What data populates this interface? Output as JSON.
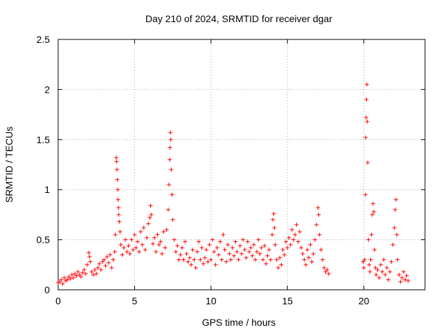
{
  "chart_data": {
    "type": "scatter",
    "title": "Day 210 of 2024, SRMTID for receiver dgar",
    "xlabel": "GPS time / hours",
    "ylabel": "SRMTID / TECUs",
    "xlim": [
      0,
      24
    ],
    "ylim": [
      0,
      2.5
    ],
    "x_ticks": [
      0,
      5,
      10,
      15,
      20
    ],
    "x_tick_labels": [
      "0",
      "5",
      "10",
      "15",
      "20"
    ],
    "y_ticks": [
      0,
      0.5,
      1,
      1.5,
      2,
      2.5
    ],
    "y_tick_labels": [
      "0",
      "0.5",
      "1",
      "1.5",
      "2",
      "2.5"
    ],
    "grid": true,
    "marker": "+",
    "series": [
      {
        "name": "SRMTID",
        "color": "#ff0000",
        "points": [
          [
            0.0,
            0.07
          ],
          [
            0.1,
            0.08
          ],
          [
            0.2,
            0.1
          ],
          [
            0.3,
            0.06
          ],
          [
            0.4,
            0.12
          ],
          [
            0.5,
            0.09
          ],
          [
            0.6,
            0.1
          ],
          [
            0.7,
            0.13
          ],
          [
            0.8,
            0.11
          ],
          [
            0.9,
            0.15
          ],
          [
            1.0,
            0.12
          ],
          [
            1.1,
            0.16
          ],
          [
            1.2,
            0.14
          ],
          [
            1.3,
            0.18
          ],
          [
            1.4,
            0.15
          ],
          [
            1.5,
            0.13
          ],
          [
            1.6,
            0.17
          ],
          [
            1.7,
            0.2
          ],
          [
            1.8,
            0.16
          ],
          [
            1.9,
            0.25
          ],
          [
            2.0,
            0.37
          ],
          [
            2.05,
            0.33
          ],
          [
            2.1,
            0.28
          ],
          [
            2.2,
            0.18
          ],
          [
            2.3,
            0.15
          ],
          [
            2.4,
            0.2
          ],
          [
            2.5,
            0.16
          ],
          [
            2.6,
            0.22
          ],
          [
            2.7,
            0.26
          ],
          [
            2.8,
            0.2
          ],
          [
            2.9,
            0.28
          ],
          [
            3.0,
            0.3
          ],
          [
            3.1,
            0.24
          ],
          [
            3.2,
            0.33
          ],
          [
            3.3,
            0.27
          ],
          [
            3.4,
            0.35
          ],
          [
            3.5,
            0.22
          ],
          [
            3.6,
            0.3
          ],
          [
            3.7,
            0.38
          ],
          [
            3.75,
            0.55
          ],
          [
            3.8,
            1.32
          ],
          [
            3.82,
            1.28
          ],
          [
            3.85,
            1.2
          ],
          [
            3.87,
            1.1
          ],
          [
            3.9,
            1.0
          ],
          [
            3.92,
            0.9
          ],
          [
            3.95,
            0.82
          ],
          [
            3.97,
            0.75
          ],
          [
            4.0,
            0.68
          ],
          [
            4.05,
            0.58
          ],
          [
            4.1,
            0.45
          ],
          [
            4.2,
            0.35
          ],
          [
            4.3,
            0.42
          ],
          [
            4.4,
            0.5
          ],
          [
            4.5,
            0.38
          ],
          [
            4.6,
            0.44
          ],
          [
            4.7,
            0.36
          ],
          [
            4.8,
            0.5
          ],
          [
            4.9,
            0.4
          ],
          [
            5.0,
            0.55
          ],
          [
            5.1,
            0.42
          ],
          [
            5.2,
            0.48
          ],
          [
            5.3,
            0.38
          ],
          [
            5.4,
            0.58
          ],
          [
            5.5,
            0.45
          ],
          [
            5.6,
            0.62
          ],
          [
            5.7,
            0.4
          ],
          [
            5.8,
            0.52
          ],
          [
            5.9,
            0.66
          ],
          [
            6.0,
            0.72
          ],
          [
            6.05,
            0.84
          ],
          [
            6.1,
            0.75
          ],
          [
            6.2,
            0.46
          ],
          [
            6.3,
            0.52
          ],
          [
            6.4,
            0.38
          ],
          [
            6.5,
            0.55
          ],
          [
            6.6,
            0.45
          ],
          [
            6.7,
            0.48
          ],
          [
            6.8,
            0.36
          ],
          [
            6.9,
            0.58
          ],
          [
            7.0,
            0.42
          ],
          [
            7.1,
            0.6
          ],
          [
            7.2,
            0.8
          ],
          [
            7.25,
            1.05
          ],
          [
            7.3,
            1.3
          ],
          [
            7.32,
            1.42
          ],
          [
            7.35,
            1.57
          ],
          [
            7.37,
            1.5
          ],
          [
            7.4,
            1.2
          ],
          [
            7.45,
            0.95
          ],
          [
            7.5,
            0.7
          ],
          [
            7.6,
            0.5
          ],
          [
            7.7,
            0.38
          ],
          [
            7.8,
            0.44
          ],
          [
            7.9,
            0.3
          ],
          [
            8.0,
            0.35
          ],
          [
            8.1,
            0.42
          ],
          [
            8.2,
            0.3
          ],
          [
            8.3,
            0.48
          ],
          [
            8.4,
            0.36
          ],
          [
            8.5,
            0.28
          ],
          [
            8.6,
            0.32
          ],
          [
            8.7,
            0.25
          ],
          [
            8.8,
            0.4
          ],
          [
            8.9,
            0.3
          ],
          [
            9.0,
            0.22
          ],
          [
            9.1,
            0.38
          ],
          [
            9.2,
            0.48
          ],
          [
            9.3,
            0.3
          ],
          [
            9.4,
            0.42
          ],
          [
            9.5,
            0.26
          ],
          [
            9.6,
            0.32
          ],
          [
            9.7,
            0.4
          ],
          [
            9.8,
            0.28
          ],
          [
            9.9,
            0.45
          ],
          [
            10.0,
            0.3
          ],
          [
            10.1,
            0.5
          ],
          [
            10.2,
            0.38
          ],
          [
            10.3,
            0.25
          ],
          [
            10.4,
            0.42
          ],
          [
            10.5,
            0.35
          ],
          [
            10.6,
            0.48
          ],
          [
            10.7,
            0.3
          ],
          [
            10.8,
            0.55
          ],
          [
            10.9,
            0.4
          ],
          [
            11.0,
            0.28
          ],
          [
            11.1,
            0.45
          ],
          [
            11.2,
            0.36
          ],
          [
            11.3,
            0.3
          ],
          [
            11.4,
            0.42
          ],
          [
            11.5,
            0.34
          ],
          [
            11.6,
            0.48
          ],
          [
            11.7,
            0.38
          ],
          [
            11.8,
            0.3
          ],
          [
            11.9,
            0.44
          ],
          [
            12.0,
            0.36
          ],
          [
            12.1,
            0.5
          ],
          [
            12.2,
            0.4
          ],
          [
            12.3,
            0.32
          ],
          [
            12.4,
            0.48
          ],
          [
            12.5,
            0.38
          ],
          [
            12.6,
            0.42
          ],
          [
            12.7,
            0.34
          ],
          [
            12.8,
            0.45
          ],
          [
            12.9,
            0.3
          ],
          [
            13.0,
            0.38
          ],
          [
            13.1,
            0.5
          ],
          [
            13.2,
            0.36
          ],
          [
            13.3,
            0.42
          ],
          [
            13.4,
            0.3
          ],
          [
            13.5,
            0.44
          ],
          [
            13.6,
            0.26
          ],
          [
            13.7,
            0.34
          ],
          [
            13.8,
            0.4
          ],
          [
            13.9,
            0.3
          ],
          [
            14.0,
            0.55
          ],
          [
            14.05,
            0.7
          ],
          [
            14.1,
            0.76
          ],
          [
            14.15,
            0.62
          ],
          [
            14.2,
            0.45
          ],
          [
            14.3,
            0.3
          ],
          [
            14.4,
            0.22
          ],
          [
            14.5,
            0.32
          ],
          [
            14.6,
            0.25
          ],
          [
            14.7,
            0.4
          ],
          [
            14.8,
            0.35
          ],
          [
            14.9,
            0.48
          ],
          [
            15.0,
            0.42
          ],
          [
            15.1,
            0.52
          ],
          [
            15.2,
            0.45
          ],
          [
            15.3,
            0.6
          ],
          [
            15.4,
            0.5
          ],
          [
            15.5,
            0.55
          ],
          [
            15.6,
            0.65
          ],
          [
            15.7,
            0.48
          ],
          [
            15.8,
            0.58
          ],
          [
            15.9,
            0.42
          ],
          [
            16.0,
            0.36
          ],
          [
            16.1,
            0.3
          ],
          [
            16.2,
            0.25
          ],
          [
            16.3,
            0.4
          ],
          [
            16.4,
            0.32
          ],
          [
            16.5,
            0.45
          ],
          [
            16.6,
            0.28
          ],
          [
            16.7,
            0.36
          ],
          [
            16.8,
            0.5
          ],
          [
            16.9,
            0.65
          ],
          [
            17.0,
            0.82
          ],
          [
            17.05,
            0.75
          ],
          [
            17.1,
            0.55
          ],
          [
            17.2,
            0.4
          ],
          [
            17.3,
            0.3
          ],
          [
            17.4,
            0.22
          ],
          [
            17.5,
            0.18
          ],
          [
            17.6,
            0.2
          ],
          [
            17.7,
            0.16
          ],
          [
            19.95,
            0.28
          ],
          [
            20.0,
            0.22
          ],
          [
            20.05,
            0.3
          ],
          [
            20.1,
            0.95
          ],
          [
            20.12,
            1.52
          ],
          [
            20.15,
            1.72
          ],
          [
            20.17,
            1.9
          ],
          [
            20.2,
            2.05
          ],
          [
            20.22,
            1.68
          ],
          [
            20.25,
            1.27
          ],
          [
            20.3,
            0.5
          ],
          [
            20.35,
            0.25
          ],
          [
            20.4,
            0.18
          ],
          [
            20.45,
            0.3
          ],
          [
            20.5,
            0.55
          ],
          [
            20.55,
            0.75
          ],
          [
            20.6,
            0.86
          ],
          [
            20.65,
            0.78
          ],
          [
            20.7,
            0.4
          ],
          [
            20.75,
            0.22
          ],
          [
            20.8,
            0.15
          ],
          [
            20.9,
            0.2
          ],
          [
            21.0,
            0.12
          ],
          [
            21.1,
            0.25
          ],
          [
            21.2,
            0.18
          ],
          [
            21.3,
            0.3
          ],
          [
            21.4,
            0.15
          ],
          [
            21.5,
            0.22
          ],
          [
            21.6,
            0.1
          ],
          [
            21.7,
            0.18
          ],
          [
            21.8,
            0.28
          ],
          [
            21.9,
            0.45
          ],
          [
            22.0,
            0.62
          ],
          [
            22.05,
            0.8
          ],
          [
            22.1,
            0.9
          ],
          [
            22.15,
            0.55
          ],
          [
            22.2,
            0.3
          ],
          [
            22.3,
            0.15
          ],
          [
            22.4,
            0.08
          ],
          [
            22.5,
            0.12
          ],
          [
            22.6,
            0.18
          ],
          [
            22.7,
            0.1
          ],
          [
            22.8,
            0.14
          ],
          [
            22.9,
            0.09
          ]
        ]
      }
    ]
  }
}
